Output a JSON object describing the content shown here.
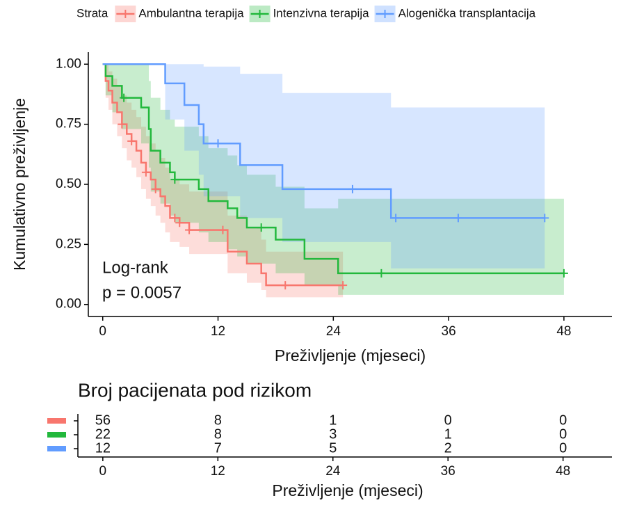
{
  "chart_data": [
    {
      "type": "survival",
      "legend_title": "Strata",
      "legend_position": "top",
      "xlabel": "Preživljenje (mjeseci)",
      "ylabel": "Kumulativno preživljenje",
      "annotations": [
        "Log-rank",
        "p = 0.0057"
      ],
      "xlim": [
        -1.5,
        53
      ],
      "xticks": [
        0,
        12,
        24,
        36,
        48
      ],
      "ylim": [
        -0.05,
        1.05
      ],
      "yticks": [
        {
          "value": 0,
          "label": "0.00"
        },
        {
          "value": 0.25,
          "label": "0.25"
        },
        {
          "value": 0.5,
          "label": "0.50"
        },
        {
          "value": 0.75,
          "label": "0.75"
        },
        {
          "value": 1,
          "label": "1.00"
        }
      ],
      "series": [
        {
          "name": "Ambulantna terapija",
          "color": "#F8766D",
          "end": 25,
          "times": [
            0,
            0.3,
            0.6,
            1,
            1.5,
            2,
            2.5,
            3,
            3.5,
            4,
            4.5,
            5,
            5.5,
            6,
            6.5,
            7,
            8,
            9,
            13,
            15,
            16.5,
            17
          ],
          "surv": [
            1,
            0.93,
            0.89,
            0.84,
            0.8,
            0.75,
            0.71,
            0.68,
            0.64,
            0.59,
            0.55,
            0.52,
            0.48,
            0.45,
            0.41,
            0.36,
            0.34,
            0.31,
            0.22,
            0.17,
            0.13,
            0.08
          ],
          "upper": [
            1,
            1,
            0.97,
            0.94,
            0.91,
            0.87,
            0.84,
            0.81,
            0.78,
            0.74,
            0.7,
            0.67,
            0.64,
            0.61,
            0.57,
            0.52,
            0.5,
            0.47,
            0.37,
            0.32,
            0.27,
            0.22
          ],
          "lower": [
            1,
            0.86,
            0.81,
            0.75,
            0.7,
            0.65,
            0.6,
            0.57,
            0.53,
            0.48,
            0.44,
            0.41,
            0.37,
            0.34,
            0.3,
            0.26,
            0.24,
            0.21,
            0.13,
            0.09,
            0.06,
            0.03
          ],
          "censor_x": [
            2,
            3,
            4.5,
            5.5,
            7.5,
            8,
            9,
            12.5,
            19,
            25
          ],
          "censor_y": [
            0.75,
            0.68,
            0.55,
            0.48,
            0.36,
            0.34,
            0.31,
            0.31,
            0.08,
            0.08
          ]
        },
        {
          "name": "Intenzivna terapija",
          "color": "#22B83C",
          "end": 48,
          "times": [
            0,
            0.3,
            1,
            2,
            4,
            4.8,
            5,
            6,
            7,
            7.5,
            10,
            11,
            13,
            14,
            15,
            18,
            21,
            24.5
          ],
          "surv": [
            1,
            0.95,
            0.91,
            0.86,
            0.82,
            0.73,
            0.64,
            0.59,
            0.55,
            0.52,
            0.48,
            0.43,
            0.4,
            0.36,
            0.32,
            0.27,
            0.19,
            0.13
          ],
          "upper": [
            1,
            1,
            1,
            1,
            1,
            0.93,
            0.86,
            0.81,
            0.77,
            0.74,
            0.7,
            0.65,
            0.62,
            0.58,
            0.54,
            0.49,
            0.4,
            0.44
          ],
          "lower": [
            1,
            0.87,
            0.8,
            0.73,
            0.67,
            0.57,
            0.47,
            0.42,
            0.37,
            0.34,
            0.3,
            0.26,
            0.23,
            0.2,
            0.17,
            0.13,
            0.08,
            0.04
          ],
          "censor_x": [
            2.2,
            7.5,
            16.5,
            29,
            48
          ],
          "censor_y": [
            0.86,
            0.52,
            0.32,
            0.13,
            0.13
          ]
        },
        {
          "name": "Alogenička transplantacija",
          "color": "#619CFF",
          "end": 46,
          "times": [
            0,
            6.5,
            8.5,
            10,
            10.5,
            14.3,
            18.7,
            30
          ],
          "surv": [
            1,
            0.92,
            0.83,
            0.75,
            0.67,
            0.58,
            0.48,
            0.36
          ],
          "upper": [
            1,
            1,
            1,
            1,
            0.99,
            0.96,
            0.88,
            0.82
          ],
          "lower": [
            1,
            0.77,
            0.64,
            0.54,
            0.45,
            0.36,
            0.26,
            0.15
          ],
          "censor_x": [
            12,
            26,
            30.5,
            37,
            46
          ],
          "censor_y": [
            0.67,
            0.48,
            0.36,
            0.36,
            0.36
          ]
        }
      ]
    },
    {
      "type": "risk_table",
      "title": "Broj pacijenata pod rizikom",
      "xlabel": "Preživljenje (mjeseci)",
      "xlim": [
        -2.6,
        53.1
      ],
      "xticks": [
        0,
        12,
        24,
        36,
        48
      ],
      "series": [
        {
          "color": "#F8766D",
          "values": [
            56,
            8,
            1,
            0,
            0
          ]
        },
        {
          "color": "#22B83C",
          "values": [
            22,
            8,
            3,
            1,
            0
          ]
        },
        {
          "color": "#619CFF",
          "values": [
            12,
            7,
            5,
            2,
            0
          ]
        }
      ]
    }
  ]
}
